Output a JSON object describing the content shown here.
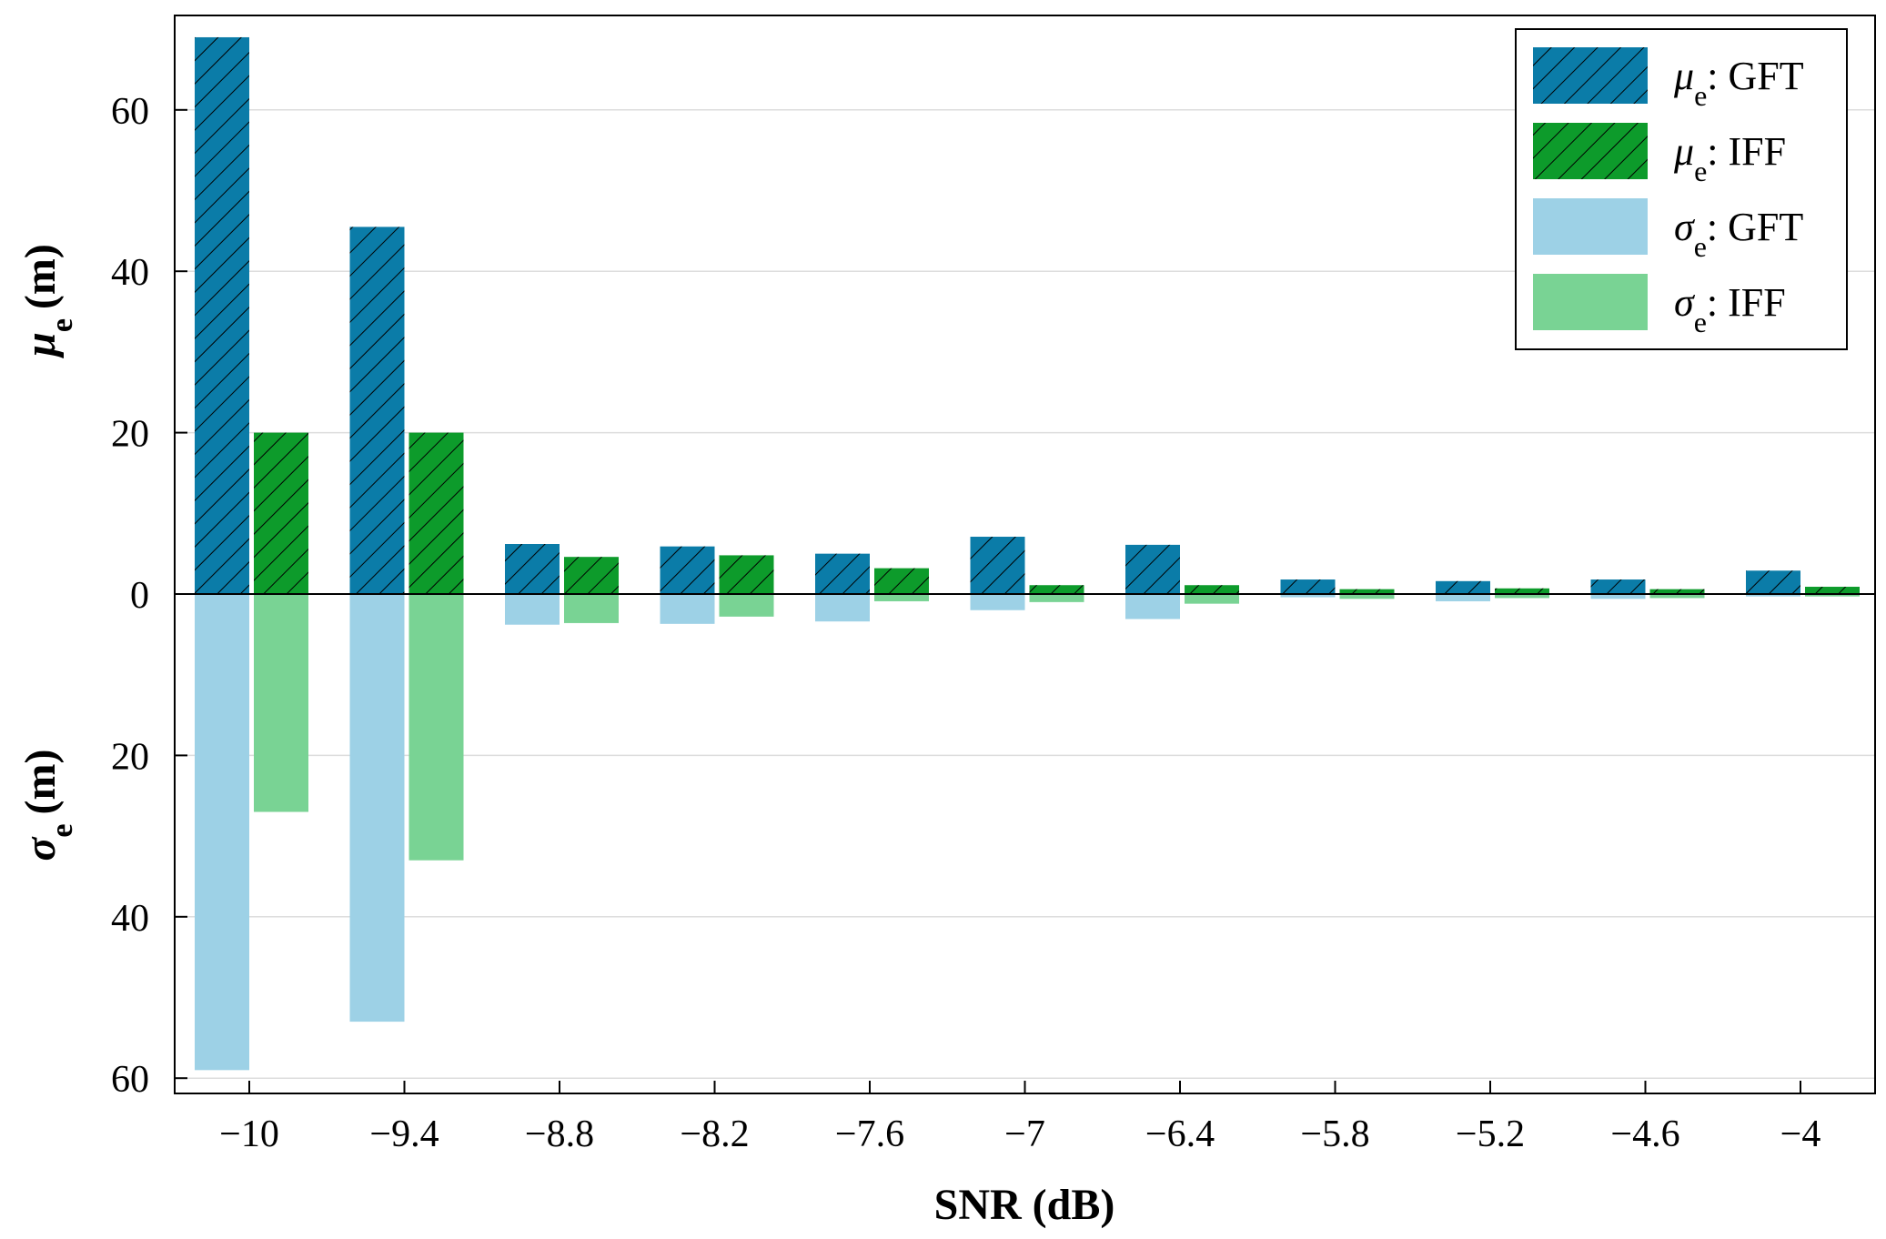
{
  "chart_data": {
    "type": "bar",
    "categories": [
      "−10",
      "−9.4",
      "−8.8",
      "−8.2",
      "−7.6",
      "−7",
      "−6.4",
      "−5.8",
      "−5.2",
      "−4.6",
      "−4"
    ],
    "xlabel": "SNR (dB)",
    "ylabel_top": {
      "symbol": "μ",
      "subscript": "e",
      "unit": "(m)"
    },
    "ylabel_bottom": {
      "symbol": "σ",
      "subscript": "e",
      "unit": "(m)"
    },
    "ylim": [
      -60,
      70
    ],
    "yticks": [
      60,
      40,
      20,
      0,
      -20,
      -40,
      -60
    ],
    "ytick_labels": [
      "60",
      "40",
      "20",
      "0",
      "20",
      "40",
      "60"
    ],
    "grid": true,
    "legend_position": "top-right",
    "series": [
      {
        "name": "GFT",
        "stat": "μ",
        "sub": "e",
        "values": [
          69,
          45.5,
          6.2,
          5.9,
          5,
          7.1,
          6.1,
          1.8,
          1.6,
          1.8,
          2.9
        ],
        "color": "#0b7ca8",
        "hatch": true,
        "direction": "up",
        "slot": 0
      },
      {
        "name": "IFF",
        "stat": "μ",
        "sub": "e",
        "values": [
          20,
          20,
          4.6,
          4.8,
          3.2,
          1.1,
          1.1,
          0.6,
          0.7,
          0.6,
          0.9
        ],
        "color": "#0d9b2b",
        "hatch": true,
        "direction": "up",
        "slot": 1
      },
      {
        "name": "GFT",
        "stat": "σ",
        "sub": "e",
        "values": [
          59,
          53,
          3.8,
          3.7,
          3.4,
          2,
          3.1,
          0.4,
          0.9,
          0.6,
          0.3
        ],
        "color": "#9dd1e6",
        "hatch": false,
        "direction": "down",
        "slot": 0
      },
      {
        "name": "IFF",
        "stat": "σ",
        "sub": "e",
        "values": [
          27,
          33,
          3.6,
          2.8,
          0.9,
          1,
          1.2,
          0.6,
          0.5,
          0.5,
          0.3
        ],
        "color": "#79d394",
        "hatch": false,
        "direction": "down",
        "slot": 1
      }
    ]
  }
}
